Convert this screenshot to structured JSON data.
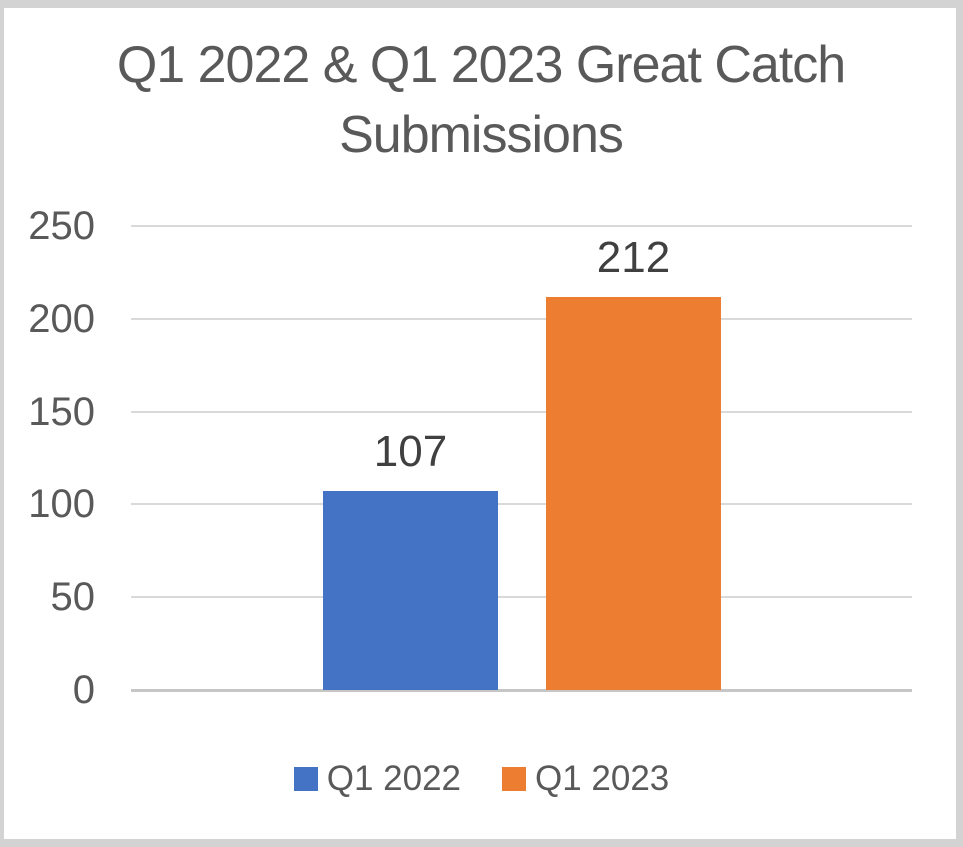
{
  "chart_data": {
    "type": "bar",
    "title": "Q1 2022 & Q1 2023 Great Catch Submissions",
    "categories": [
      ""
    ],
    "series": [
      {
        "name": "Q1 2022",
        "values": [
          107
        ],
        "color": "#4472C4"
      },
      {
        "name": "Q1 2023",
        "values": [
          212
        ],
        "color": "#ED7D31"
      }
    ],
    "xlabel": "",
    "ylabel": "",
    "ylim": [
      0,
      250
    ],
    "yticks": [
      0,
      50,
      100,
      150,
      200,
      250
    ],
    "grid": true,
    "data_labels": true,
    "legend_position": "bottom"
  },
  "styles": {
    "background": "#FFFFFF",
    "frame_border": "#D3D3D3",
    "title_color": "#595959",
    "tick_label_color": "#595959",
    "data_label_color": "#404040",
    "legend_label_color": "#595959",
    "gridline_color": "#D9D9D9",
    "axis_line_color": "#C6C6C6"
  }
}
